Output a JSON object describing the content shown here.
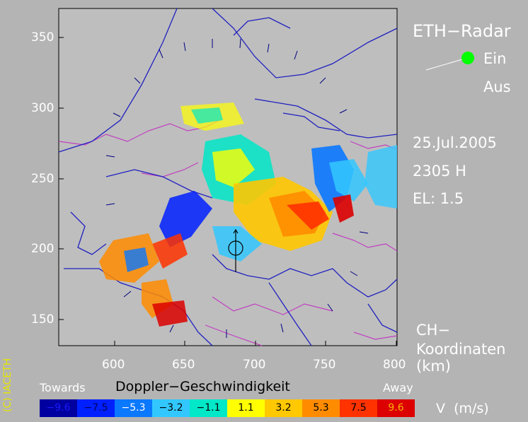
{
  "title": "ETH−Radar",
  "status": {
    "on_label": "Ein",
    "off_label": "Aus",
    "active_color": "#00ff00"
  },
  "date": "25.Jul.2005",
  "time": "2305 H",
  "elevation": "EL: 1.5",
  "coords": {
    "line1": "CH−",
    "line2": "Koordinaten",
    "line3": "(km)"
  },
  "copyright": "(C) IACETH",
  "axes": {
    "x_ticks": [
      "600",
      "650",
      "700",
      "750",
      "800"
    ],
    "y_ticks": [
      "350",
      "300",
      "250",
      "200",
      "150"
    ],
    "x_range": [
      560,
      800
    ],
    "y_range": [
      132,
      373
    ]
  },
  "legend": {
    "towards_label": "Towards",
    "title": "Doppler−Geschwindigkeit",
    "away_label": "Away",
    "unit_label": "V  (m/s)",
    "entries": [
      {
        "value": "−9.6",
        "color": "#0000a0",
        "text_color": "#1a1aff"
      },
      {
        "value": "−7.5",
        "color": "#0020ff",
        "text_color": "#000060"
      },
      {
        "value": "−5.3",
        "color": "#0a78ff",
        "text_color": "#ffffff"
      },
      {
        "value": "−3.2",
        "color": "#32c8ff",
        "text_color": "#000000"
      },
      {
        "value": "−1.1",
        "color": "#00e8c8",
        "text_color": "#000000"
      },
      {
        "value": "1.1",
        "color": "#ffff00",
        "text_color": "#000000"
      },
      {
        "value": "3.2",
        "color": "#ffc800",
        "text_color": "#000000"
      },
      {
        "value": "5.3",
        "color": "#ff8c00",
        "text_color": "#000000"
      },
      {
        "value": "7.5",
        "color": "#ff3200",
        "text_color": "#000000"
      },
      {
        "value": "9.6",
        "color": "#dc0000",
        "text_color": "#ffb000"
      }
    ]
  }
}
